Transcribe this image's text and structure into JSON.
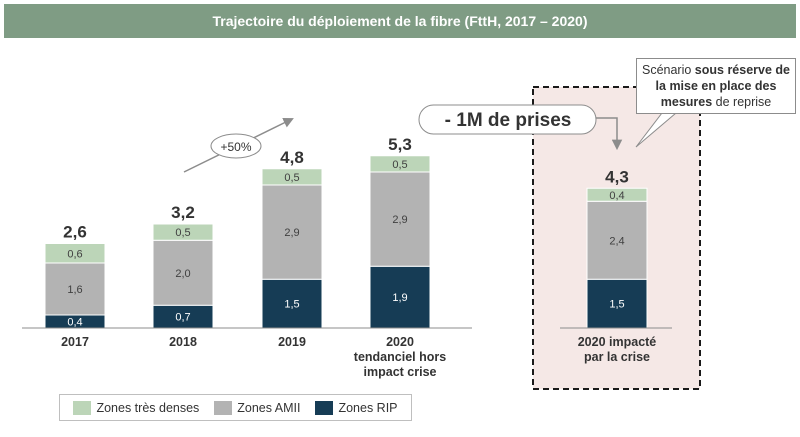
{
  "title": "Trajectoire du déploiement de la fibre (FttH, 2017 – 2020)",
  "chart_data": {
    "type": "bar",
    "stacked": true,
    "categories": [
      "2017",
      "2018",
      "2019",
      "2020 tendanciel hors impact crise",
      "2020 impacté par la crise"
    ],
    "category_lines": [
      [
        "2017"
      ],
      [
        "2018"
      ],
      [
        "2019"
      ],
      [
        "2020",
        "tendanciel hors",
        "impact crise"
      ],
      [
        "2020 impacté",
        "par la crise"
      ]
    ],
    "series": [
      {
        "name": "Zones RIP",
        "color": "#163c55",
        "values": [
          0.4,
          0.7,
          1.5,
          1.9,
          1.5
        ],
        "labels": [
          "0,4",
          "0,7",
          "1,5",
          "1,9",
          "1,5"
        ]
      },
      {
        "name": "Zones AMII",
        "color": "#b3b3b3",
        "values": [
          1.6,
          2.0,
          2.9,
          2.9,
          2.4
        ],
        "labels": [
          "1,6",
          "2,0",
          "2,9",
          "2,9",
          "2,4"
        ]
      },
      {
        "name": "Zones très denses",
        "color": "#bcd5b8",
        "values": [
          0.6,
          0.5,
          0.5,
          0.5,
          0.4
        ],
        "labels": [
          "0,6",
          "0,5",
          "0,5",
          "0,5",
          "0,4"
        ]
      }
    ],
    "totals": [
      2.6,
      3.2,
      4.8,
      5.3,
      4.3
    ],
    "total_labels": [
      "2,6",
      "3,2",
      "4,8",
      "5,3",
      "4,3"
    ],
    "ylim": [
      0,
      5.5
    ],
    "grid": false,
    "legend_position": "bottom-left",
    "annotations": {
      "growth_label": "+50%",
      "drop_label": "- 1M de prises",
      "scenario_note": {
        "part1": "Scénario ",
        "bold1": "sous réserve de la mise en place des mesures",
        "part2": " de reprise"
      }
    }
  },
  "legend": {
    "items": [
      {
        "label": "Zones très denses",
        "color": "#bcd5b8"
      },
      {
        "label": "Zones AMII",
        "color": "#b3b3b3"
      },
      {
        "label": "Zones RIP",
        "color": "#163c55"
      }
    ]
  }
}
